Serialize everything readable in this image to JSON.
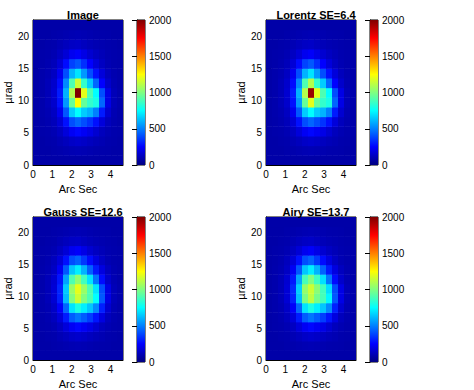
{
  "chart_data": [
    {
      "type": "heatmap",
      "title": "Image",
      "xlabel": "Arc Sec",
      "ylabel": "µrad",
      "x": [
        0.155,
        0.465,
        0.775,
        1.085,
        1.395,
        1.705,
        2.015,
        2.325,
        2.635,
        2.945,
        3.255,
        3.565,
        3.875,
        4.185,
        4.495
      ],
      "y": [
        0.75,
        2.25,
        3.75,
        5.25,
        6.75,
        8.25,
        9.75,
        11.25,
        12.75,
        14.25,
        15.75,
        17.25,
        18.75,
        20.25,
        21.75
      ],
      "cells": [
        [
          80,
          80,
          80,
          80,
          80,
          80,
          80,
          80,
          80,
          80,
          80,
          80,
          80,
          80,
          80
        ],
        [
          80,
          80,
          80,
          85,
          90,
          95,
          100,
          105,
          100,
          95,
          90,
          88,
          85,
          80,
          80
        ],
        [
          80,
          80,
          85,
          90,
          105,
          120,
          140,
          150,
          140,
          125,
          110,
          100,
          90,
          85,
          80
        ],
        [
          80,
          85,
          90,
          100,
          130,
          180,
          230,
          260,
          230,
          200,
          160,
          120,
          100,
          90,
          85
        ],
        [
          80,
          85,
          95,
          115,
          170,
          280,
          400,
          450,
          400,
          350,
          280,
          180,
          120,
          95,
          85
        ],
        [
          80,
          90,
          100,
          130,
          220,
          420,
          650,
          750,
          650,
          600,
          500,
          300,
          160,
          100,
          85
        ],
        [
          80,
          90,
          110,
          150,
          280,
          550,
          950,
          1250,
          950,
          850,
          800,
          450,
          200,
          110,
          90
        ],
        [
          80,
          90,
          110,
          160,
          300,
          600,
          1100,
          2000,
          1200,
          900,
          750,
          400,
          200,
          110,
          90
        ],
        [
          80,
          90,
          110,
          150,
          270,
          520,
          900,
          1150,
          850,
          650,
          450,
          250,
          150,
          100,
          85
        ],
        [
          80,
          90,
          100,
          130,
          220,
          400,
          600,
          700,
          550,
          400,
          280,
          180,
          120,
          95,
          85
        ],
        [
          80,
          85,
          95,
          115,
          170,
          270,
          380,
          420,
          340,
          250,
          180,
          130,
          100,
          90,
          85
        ],
        [
          80,
          85,
          90,
          100,
          130,
          170,
          220,
          240,
          200,
          160,
          130,
          110,
          95,
          90,
          85
        ],
        [
          80,
          80,
          85,
          90,
          105,
          120,
          135,
          140,
          125,
          110,
          100,
          95,
          90,
          85,
          80
        ],
        [
          80,
          80,
          80,
          85,
          90,
          95,
          100,
          105,
          100,
          95,
          90,
          88,
          85,
          80,
          80
        ],
        [
          80,
          80,
          80,
          80,
          80,
          80,
          80,
          80,
          80,
          80,
          80,
          80,
          80,
          80,
          80
        ]
      ],
      "xlim": [
        0,
        4.65
      ],
      "xticks": [
        0,
        1,
        2,
        3,
        4
      ],
      "ylim": [
        0,
        22.5
      ],
      "yticks": [
        0,
        5,
        10,
        15,
        20
      ],
      "colorbar": {
        "range": [
          0,
          2000
        ],
        "ticks": [
          0,
          500,
          1000,
          1500,
          2000
        ]
      }
    },
    {
      "type": "heatmap",
      "title": "Lorentz SE=6.4",
      "xlabel": "Arc Sec",
      "ylabel": "µrad",
      "x": [
        0.155,
        0.465,
        0.775,
        1.085,
        1.395,
        1.705,
        2.015,
        2.325,
        2.635,
        2.945,
        3.255,
        3.565,
        3.875,
        4.185,
        4.495
      ],
      "y": [
        0.75,
        2.25,
        3.75,
        5.25,
        6.75,
        8.25,
        9.75,
        11.25,
        12.75,
        14.25,
        15.75,
        17.25,
        18.75,
        20.25,
        21.75
      ],
      "cells": [
        [
          80,
          80,
          80,
          80,
          80,
          80,
          80,
          80,
          80,
          80,
          80,
          80,
          80,
          80,
          80
        ],
        [
          80,
          80,
          80,
          85,
          90,
          95,
          100,
          105,
          100,
          95,
          90,
          88,
          85,
          80,
          80
        ],
        [
          80,
          80,
          85,
          90,
          105,
          120,
          140,
          150,
          140,
          125,
          110,
          100,
          90,
          85,
          80
        ],
        [
          80,
          85,
          90,
          100,
          130,
          180,
          230,
          260,
          230,
          200,
          160,
          120,
          100,
          90,
          85
        ],
        [
          80,
          85,
          95,
          115,
          170,
          280,
          400,
          450,
          400,
          350,
          280,
          180,
          120,
          95,
          85
        ],
        [
          80,
          90,
          100,
          130,
          220,
          420,
          650,
          750,
          650,
          600,
          500,
          300,
          160,
          100,
          85
        ],
        [
          80,
          90,
          110,
          150,
          280,
          550,
          950,
          1200,
          950,
          850,
          800,
          450,
          200,
          110,
          90
        ],
        [
          80,
          90,
          110,
          160,
          300,
          600,
          1100,
          1950,
          1200,
          900,
          750,
          400,
          200,
          110,
          90
        ],
        [
          80,
          90,
          110,
          150,
          270,
          520,
          900,
          1100,
          850,
          650,
          450,
          250,
          150,
          100,
          85
        ],
        [
          80,
          90,
          100,
          130,
          220,
          400,
          600,
          700,
          550,
          400,
          280,
          180,
          120,
          95,
          85
        ],
        [
          80,
          85,
          95,
          115,
          170,
          270,
          380,
          420,
          340,
          250,
          180,
          130,
          100,
          90,
          85
        ],
        [
          80,
          85,
          90,
          100,
          130,
          170,
          220,
          240,
          200,
          160,
          130,
          110,
          95,
          90,
          85
        ],
        [
          80,
          80,
          85,
          90,
          105,
          120,
          135,
          140,
          125,
          110,
          100,
          95,
          90,
          85,
          80
        ],
        [
          80,
          80,
          80,
          85,
          90,
          95,
          100,
          105,
          100,
          95,
          90,
          88,
          85,
          80,
          80
        ],
        [
          80,
          80,
          80,
          80,
          80,
          80,
          80,
          80,
          80,
          80,
          80,
          80,
          80,
          80,
          80
        ]
      ],
      "xlim": [
        0,
        4.65
      ],
      "xticks": [
        0,
        1,
        2,
        3,
        4
      ],
      "ylim": [
        0,
        22.5
      ],
      "yticks": [
        0,
        5,
        10,
        15,
        20
      ],
      "colorbar": {
        "range": [
          0,
          2000
        ],
        "ticks": [
          0,
          500,
          1000,
          1500,
          2000
        ]
      }
    },
    {
      "type": "heatmap",
      "title": "Gauss SE=12.6",
      "xlabel": "Arc Sec",
      "ylabel": "µrad",
      "x": [
        0.155,
        0.465,
        0.775,
        1.085,
        1.395,
        1.705,
        2.015,
        2.325,
        2.635,
        2.945,
        3.255,
        3.565,
        3.875,
        4.185,
        4.495
      ],
      "y": [
        0.75,
        2.25,
        3.75,
        5.25,
        6.75,
        8.25,
        9.75,
        11.25,
        12.75,
        14.25,
        15.75,
        17.25,
        18.75,
        20.25,
        21.75
      ],
      "cells": [
        [
          80,
          80,
          80,
          80,
          80,
          80,
          80,
          80,
          80,
          80,
          80,
          80,
          80,
          80,
          80
        ],
        [
          80,
          80,
          80,
          85,
          90,
          95,
          100,
          105,
          100,
          95,
          90,
          88,
          85,
          80,
          80
        ],
        [
          80,
          80,
          85,
          90,
          105,
          120,
          140,
          150,
          140,
          125,
          110,
          100,
          90,
          85,
          80
        ],
        [
          80,
          85,
          90,
          100,
          130,
          180,
          230,
          260,
          230,
          200,
          160,
          120,
          100,
          90,
          85
        ],
        [
          80,
          85,
          95,
          120,
          180,
          300,
          430,
          480,
          430,
          370,
          290,
          190,
          120,
          95,
          85
        ],
        [
          80,
          90,
          100,
          140,
          240,
          450,
          700,
          800,
          720,
          640,
          520,
          310,
          160,
          100,
          85
        ],
        [
          80,
          90,
          110,
          165,
          310,
          620,
          1000,
          1150,
          1000,
          900,
          750,
          420,
          200,
          110,
          90
        ],
        [
          80,
          90,
          110,
          170,
          320,
          650,
          1050,
          1200,
          1050,
          900,
          700,
          400,
          200,
          110,
          90
        ],
        [
          80,
          90,
          110,
          160,
          290,
          570,
          900,
          1030,
          880,
          700,
          480,
          270,
          150,
          100,
          85
        ],
        [
          80,
          90,
          100,
          135,
          230,
          420,
          640,
          720,
          600,
          440,
          300,
          190,
          125,
          95,
          85
        ],
        [
          80,
          85,
          95,
          120,
          175,
          280,
          400,
          440,
          360,
          270,
          190,
          135,
          100,
          90,
          85
        ],
        [
          80,
          85,
          90,
          100,
          130,
          170,
          220,
          240,
          200,
          160,
          130,
          110,
          95,
          90,
          85
        ],
        [
          80,
          80,
          85,
          90,
          105,
          120,
          135,
          140,
          125,
          110,
          100,
          95,
          90,
          85,
          80
        ],
        [
          80,
          80,
          80,
          85,
          90,
          95,
          100,
          105,
          100,
          95,
          90,
          88,
          85,
          80,
          80
        ],
        [
          80,
          80,
          80,
          80,
          80,
          80,
          80,
          80,
          80,
          80,
          80,
          80,
          80,
          80,
          80
        ]
      ],
      "xlim": [
        0,
        4.65
      ],
      "xticks": [
        0,
        1,
        2,
        3,
        4
      ],
      "ylim": [
        0,
        22.5
      ],
      "yticks": [
        0,
        5,
        10,
        15,
        20
      ],
      "colorbar": {
        "range": [
          0,
          2000
        ],
        "ticks": [
          0,
          500,
          1000,
          1500,
          2000
        ]
      }
    },
    {
      "type": "heatmap",
      "title": "Airy SE=13.7",
      "xlabel": "Arc Sec",
      "ylabel": "µrad",
      "x": [
        0.155,
        0.465,
        0.775,
        1.085,
        1.395,
        1.705,
        2.015,
        2.325,
        2.635,
        2.945,
        3.255,
        3.565,
        3.875,
        4.185,
        4.495
      ],
      "y": [
        0.75,
        2.25,
        3.75,
        5.25,
        6.75,
        8.25,
        9.75,
        11.25,
        12.75,
        14.25,
        15.75,
        17.25,
        18.75,
        20.25,
        21.75
      ],
      "cells": [
        [
          80,
          80,
          80,
          80,
          80,
          80,
          80,
          80,
          80,
          80,
          80,
          80,
          80,
          80,
          80
        ],
        [
          80,
          80,
          80,
          85,
          90,
          95,
          100,
          105,
          100,
          95,
          90,
          88,
          85,
          80,
          80
        ],
        [
          80,
          80,
          85,
          90,
          105,
          120,
          140,
          150,
          140,
          125,
          110,
          100,
          90,
          85,
          80
        ],
        [
          80,
          85,
          90,
          100,
          130,
          180,
          230,
          260,
          230,
          200,
          160,
          120,
          100,
          90,
          85
        ],
        [
          80,
          85,
          95,
          120,
          180,
          300,
          430,
          480,
          430,
          370,
          290,
          190,
          120,
          95,
          85
        ],
        [
          80,
          90,
          100,
          140,
          240,
          450,
          700,
          800,
          720,
          640,
          520,
          310,
          160,
          100,
          85
        ],
        [
          80,
          90,
          110,
          165,
          315,
          630,
          990,
          1120,
          980,
          890,
          740,
          420,
          200,
          110,
          90
        ],
        [
          80,
          90,
          110,
          170,
          330,
          660,
          1040,
          1150,
          1020,
          880,
          690,
          400,
          200,
          110,
          90
        ],
        [
          80,
          90,
          110,
          160,
          295,
          575,
          890,
          1000,
          870,
          690,
          480,
          270,
          150,
          100,
          85
        ],
        [
          80,
          90,
          100,
          135,
          230,
          420,
          640,
          720,
          600,
          440,
          300,
          190,
          125,
          95,
          85
        ],
        [
          80,
          85,
          95,
          120,
          175,
          280,
          400,
          440,
          360,
          270,
          190,
          135,
          100,
          90,
          85
        ],
        [
          80,
          85,
          90,
          100,
          130,
          170,
          220,
          240,
          200,
          160,
          130,
          110,
          95,
          90,
          85
        ],
        [
          80,
          80,
          85,
          90,
          105,
          120,
          135,
          140,
          125,
          110,
          100,
          95,
          90,
          85,
          80
        ],
        [
          80,
          80,
          80,
          85,
          90,
          95,
          100,
          105,
          100,
          95,
          90,
          88,
          85,
          80,
          80
        ],
        [
          80,
          80,
          80,
          80,
          80,
          80,
          80,
          80,
          80,
          80,
          80,
          80,
          80,
          80,
          80
        ]
      ],
      "xlim": [
        0,
        4.65
      ],
      "xticks": [
        0,
        1,
        2,
        3,
        4
      ],
      "ylim": [
        0,
        22.5
      ],
      "yticks": [
        0,
        5,
        10,
        15,
        20
      ],
      "colorbar": {
        "range": [
          0,
          2000
        ],
        "ticks": [
          0,
          500,
          1000,
          1500,
          2000
        ]
      }
    }
  ]
}
